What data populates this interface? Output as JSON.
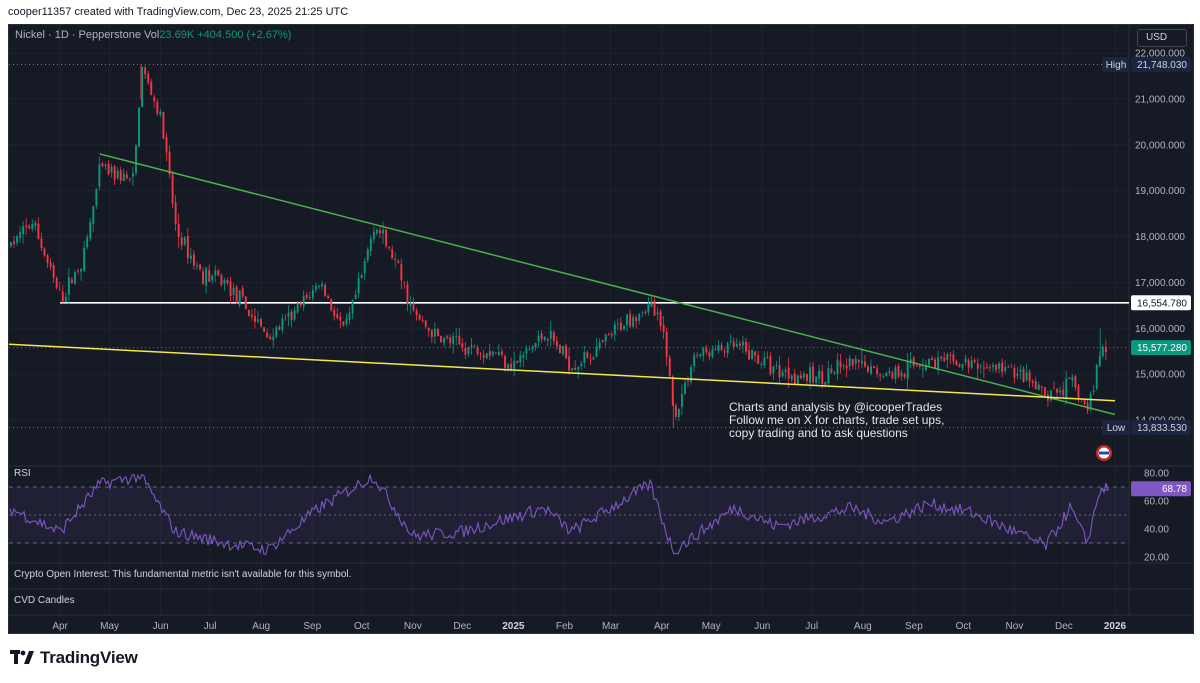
{
  "header": {
    "credit": "cooper11357 created with TradingView.com, Dec 23, 2025 21:25 UTC"
  },
  "legend": {
    "symbol": "Nickel · 1D · Pepperstone",
    "vol_label": "Vol",
    "vol_value": "23.69K",
    "change": "+404.500 (+2.67%)"
  },
  "currency_button": "USD",
  "price_axis": {
    "ticks": [
      "22,000.000",
      "21,000.000",
      "20,000.000",
      "19,000.000",
      "18,000.000",
      "17,000.000",
      "16,000.000",
      "15,000.000",
      "14,000.000"
    ],
    "high_tag": "High",
    "high_value": "21,748.030",
    "level_value": "16,554.780",
    "last_value": "15,577.280",
    "low_tag": "Low",
    "low_value": "13,833.530"
  },
  "annotation": {
    "line1": "Charts and analysis by @icooperTrades",
    "line2": "Follow me on X for charts, trade set ups,",
    "line3": "copy trading and to ask questions"
  },
  "rsi": {
    "label": "RSI",
    "ticks": [
      "80.00",
      "60.00",
      "40.00",
      "20.00"
    ],
    "value": "68.78"
  },
  "panes": {
    "oi_text": "Crypto Open Interest: This fundamental metric isn't available for this symbol.",
    "cvd_label": "CVD Candles"
  },
  "time_axis": [
    "Apr",
    "May",
    "Jun",
    "Jul",
    "Aug",
    "Sep",
    "Oct",
    "Nov",
    "Dec",
    "2025",
    "Feb",
    "Mar",
    "Apr",
    "May",
    "Jun",
    "Jul",
    "Aug",
    "Sep",
    "Oct",
    "Nov",
    "Dec",
    "2026"
  ],
  "branding": {
    "name": "TradingView"
  },
  "colors": {
    "background": "#161a25",
    "up": "#089981",
    "down": "#f23645",
    "trendline_green": "#4caf50",
    "support_yellow": "#f5e94a",
    "level_white": "#ffffff",
    "rsi_line": "#7e57c2"
  },
  "chart_data": {
    "type": "candlestick",
    "title": "Nickel · 1D · Pepperstone",
    "price_range": [
      13600,
      22400
    ],
    "levels": {
      "high": 21748.03,
      "horizontal": 16554.78,
      "last": 15577.28,
      "low": 13833.53
    },
    "trendlines": [
      {
        "name": "descending resistance",
        "from": [
          "2024-04-25",
          19800
        ],
        "to": [
          "2026-01-01",
          14120
        ]
      },
      {
        "name": "support",
        "from": [
          "2024-03-01",
          15650
        ],
        "to": [
          "2026-01-01",
          14420
        ]
      }
    ],
    "price_path": [
      {
        "date": "2024-03-01",
        "close": 17800
      },
      {
        "date": "2024-03-15",
        "close": 18300
      },
      {
        "date": "2024-04-01",
        "close": 16600
      },
      {
        "date": "2024-04-15",
        "close": 17600
      },
      {
        "date": "2024-04-25",
        "close": 19500
      },
      {
        "date": "2024-05-15",
        "close": 19200
      },
      {
        "date": "2024-05-20",
        "close": 21700
      },
      {
        "date": "2024-06-01",
        "close": 20500
      },
      {
        "date": "2024-06-10",
        "close": 18100
      },
      {
        "date": "2024-06-25",
        "close": 17200
      },
      {
        "date": "2024-07-10",
        "close": 17000
      },
      {
        "date": "2024-07-25",
        "close": 16300
      },
      {
        "date": "2024-08-05",
        "close": 15800
      },
      {
        "date": "2024-08-20",
        "close": 16300
      },
      {
        "date": "2024-09-05",
        "close": 17000
      },
      {
        "date": "2024-09-20",
        "close": 15900
      },
      {
        "date": "2024-10-01",
        "close": 17200
      },
      {
        "date": "2024-10-08",
        "close": 18300
      },
      {
        "date": "2024-10-20",
        "close": 17500
      },
      {
        "date": "2024-11-01",
        "close": 16300
      },
      {
        "date": "2024-11-15",
        "close": 15800
      },
      {
        "date": "2024-12-01",
        "close": 15600
      },
      {
        "date": "2024-12-20",
        "close": 15500
      },
      {
        "date": "2025-01-01",
        "close": 15200
      },
      {
        "date": "2025-01-20",
        "close": 15900
      },
      {
        "date": "2025-02-05",
        "close": 15200
      },
      {
        "date": "2025-02-20",
        "close": 15500
      },
      {
        "date": "2025-03-10",
        "close": 16200
      },
      {
        "date": "2025-03-25",
        "close": 16500
      },
      {
        "date": "2025-04-03",
        "close": 15700
      },
      {
        "date": "2025-04-08",
        "close": 14000
      },
      {
        "date": "2025-04-20",
        "close": 15400
      },
      {
        "date": "2025-05-15",
        "close": 15600
      },
      {
        "date": "2025-06-10",
        "close": 15100
      },
      {
        "date": "2025-07-01",
        "close": 14900
      },
      {
        "date": "2025-07-25",
        "close": 15200
      },
      {
        "date": "2025-08-15",
        "close": 15000
      },
      {
        "date": "2025-09-10",
        "close": 15300
      },
      {
        "date": "2025-10-05",
        "close": 15200
      },
      {
        "date": "2025-10-30",
        "close": 15100
      },
      {
        "date": "2025-11-20",
        "close": 14500
      },
      {
        "date": "2025-12-05",
        "close": 14800
      },
      {
        "date": "2025-12-15",
        "close": 14200
      },
      {
        "date": "2025-12-23",
        "close": 15577.28
      }
    ],
    "rsi_range": [
      20,
      80
    ],
    "rsi_bands": [
      30,
      50,
      70
    ],
    "rsi_path": [
      {
        "date": "2024-03-01",
        "value": 55
      },
      {
        "date": "2024-04-01",
        "value": 38
      },
      {
        "date": "2024-04-25",
        "value": 72
      },
      {
        "date": "2024-05-20",
        "value": 78
      },
      {
        "date": "2024-06-10",
        "value": 38
      },
      {
        "date": "2024-07-10",
        "value": 30
      },
      {
        "date": "2024-08-05",
        "value": 25
      },
      {
        "date": "2024-09-05",
        "value": 55
      },
      {
        "date": "2024-10-08",
        "value": 78
      },
      {
        "date": "2024-11-01",
        "value": 35
      },
      {
        "date": "2024-12-01",
        "value": 38
      },
      {
        "date": "2025-01-20",
        "value": 55
      },
      {
        "date": "2025-02-05",
        "value": 38
      },
      {
        "date": "2025-03-25",
        "value": 72
      },
      {
        "date": "2025-04-08",
        "value": 24
      },
      {
        "date": "2025-05-15",
        "value": 55
      },
      {
        "date": "2025-06-10",
        "value": 42
      },
      {
        "date": "2025-07-25",
        "value": 55
      },
      {
        "date": "2025-08-15",
        "value": 45
      },
      {
        "date": "2025-09-10",
        "value": 58
      },
      {
        "date": "2025-10-05",
        "value": 52
      },
      {
        "date": "2025-11-20",
        "value": 28
      },
      {
        "date": "2025-12-05",
        "value": 55
      },
      {
        "date": "2025-12-15",
        "value": 30
      },
      {
        "date": "2025-12-23",
        "value": 68.78
      }
    ]
  }
}
